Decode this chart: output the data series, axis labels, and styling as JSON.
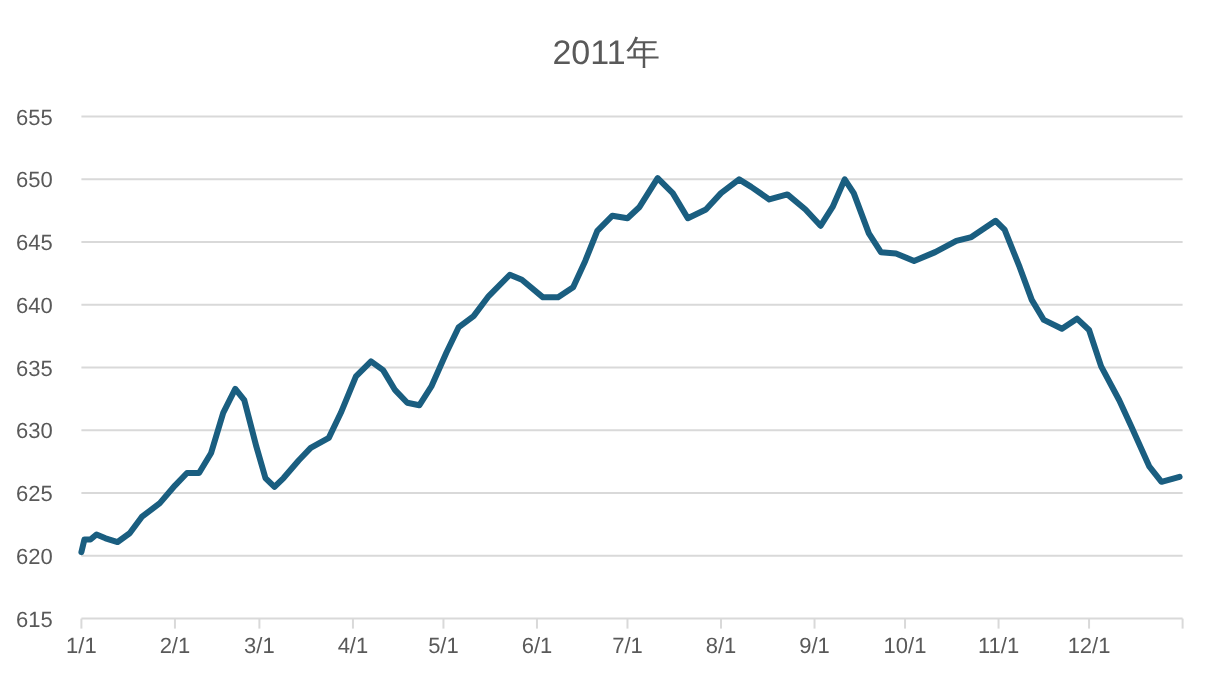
{
  "chart_data": {
    "type": "line",
    "title": "2011年",
    "x": [
      "2011-01-01",
      "2011-01-02",
      "2011-01-04",
      "2011-01-06",
      "2011-01-09",
      "2011-01-13",
      "2011-01-17",
      "2011-01-21",
      "2011-01-27",
      "2011-02-01",
      "2011-02-05",
      "2011-02-09",
      "2011-02-13",
      "2011-02-17",
      "2011-02-21",
      "2011-02-24",
      "2011-02-28",
      "2011-03-03",
      "2011-03-06",
      "2011-03-09",
      "2011-03-14",
      "2011-03-18",
      "2011-03-24",
      "2011-03-28",
      "2011-04-02",
      "2011-04-07",
      "2011-04-11",
      "2011-04-15",
      "2011-04-19",
      "2011-04-23",
      "2011-04-27",
      "2011-05-02",
      "2011-05-06",
      "2011-05-11",
      "2011-05-16",
      "2011-05-23",
      "2011-05-27",
      "2011-06-03",
      "2011-06-08",
      "2011-06-13",
      "2011-06-17",
      "2011-06-21",
      "2011-06-26",
      "2011-07-01",
      "2011-07-05",
      "2011-07-11",
      "2011-07-16",
      "2011-07-21",
      "2011-07-27",
      "2011-08-01",
      "2011-08-07",
      "2011-08-11",
      "2011-08-17",
      "2011-08-23",
      "2011-08-29",
      "2011-09-03",
      "2011-09-07",
      "2011-09-11",
      "2011-09-14",
      "2011-09-19",
      "2011-09-23",
      "2011-09-28",
      "2011-10-04",
      "2011-10-11",
      "2011-10-18",
      "2011-10-23",
      "2011-10-31",
      "2011-11-03",
      "2011-11-08",
      "2011-11-12",
      "2011-11-16",
      "2011-11-22",
      "2011-11-27",
      "2011-12-01",
      "2011-12-05",
      "2011-12-11",
      "2011-12-15",
      "2011-12-21",
      "2011-12-25",
      "2011-12-31"
    ],
    "series": [
      {
        "color": "#1a5e80",
        "values": [
          620.3,
          621.3,
          621.3,
          621.7,
          621.4,
          621.1,
          621.8,
          623.1,
          624.2,
          625.6,
          626.6,
          626.6,
          628.2,
          631.4,
          633.3,
          632.4,
          628.7,
          626.2,
          625.5,
          626.2,
          627.6,
          628.6,
          629.4,
          631.4,
          634.3,
          635.5,
          634.8,
          633.2,
          632.2,
          632.0,
          633.5,
          636.2,
          638.2,
          639.1,
          640.7,
          642.4,
          642.0,
          640.6,
          640.6,
          641.4,
          643.5,
          645.9,
          647.1,
          646.9,
          647.8,
          650.1,
          648.9,
          646.9,
          647.6,
          648.9,
          650.0,
          649.4,
          648.4,
          648.8,
          647.6,
          646.3,
          647.8,
          650.0,
          648.9,
          645.7,
          644.2,
          644.1,
          643.5,
          644.2,
          645.1,
          645.4,
          646.7,
          646.0,
          643.0,
          640.4,
          638.8,
          638.1,
          638.9,
          638.0,
          635.1,
          632.4,
          630.3,
          627.1,
          625.9,
          626.3
        ]
      }
    ],
    "xlim": [
      "2011-01-01",
      "2012-01-01"
    ],
    "xticks": [
      {
        "value": "2011-01-01",
        "label": "1/1"
      },
      {
        "value": "2011-02-01",
        "label": "2/1"
      },
      {
        "value": "2011-03-01",
        "label": "3/1"
      },
      {
        "value": "2011-04-01",
        "label": "4/1"
      },
      {
        "value": "2011-05-01",
        "label": "5/1"
      },
      {
        "value": "2011-06-01",
        "label": "6/1"
      },
      {
        "value": "2011-07-01",
        "label": "7/1"
      },
      {
        "value": "2011-08-01",
        "label": "8/1"
      },
      {
        "value": "2011-09-01",
        "label": "9/1"
      },
      {
        "value": "2011-10-01",
        "label": "10/1"
      },
      {
        "value": "2011-11-01",
        "label": "11/1"
      },
      {
        "value": "2011-12-01",
        "label": "12/1"
      },
      {
        "value": "2012-01-01",
        "label": null
      }
    ],
    "ylim": [
      615,
      655
    ],
    "yticks": [
      615,
      620,
      625,
      630,
      635,
      640,
      645,
      650,
      655
    ],
    "grid": "y",
    "marker": "none",
    "line_style": "solid"
  }
}
